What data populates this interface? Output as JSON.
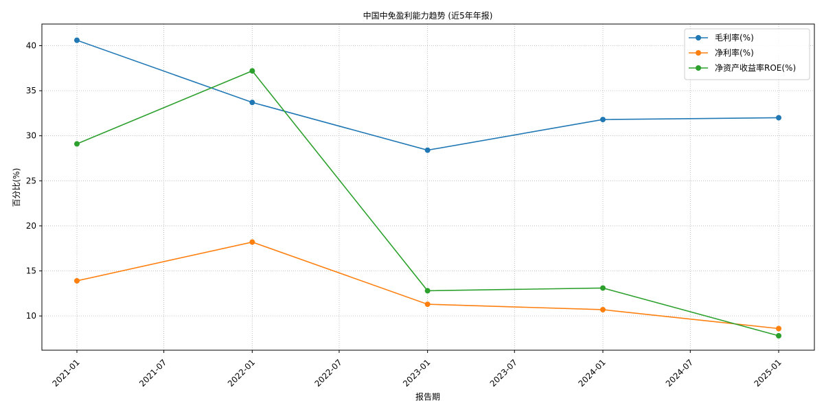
{
  "chart_data": {
    "type": "line",
    "title": "中国中免盈利能力趋势 (近5年年报)",
    "xlabel": "报告期",
    "ylabel": "百分比(%)",
    "x": [
      "2021-01",
      "2022-01",
      "2023-01",
      "2024-01",
      "2025-01"
    ],
    "x_tick_labels": [
      "2021-01",
      "2021-07",
      "2022-01",
      "2022-07",
      "2023-01",
      "2023-07",
      "2024-01",
      "2024-07",
      "2025-01"
    ],
    "y_ticks": [
      10,
      15,
      20,
      25,
      30,
      35,
      40
    ],
    "ylim": [
      6.2,
      42.4
    ],
    "grid": true,
    "legend_position": "top-right",
    "series": [
      {
        "name": "毛利率(%)",
        "color": "#1f77b4",
        "values": [
          40.6,
          33.7,
          28.4,
          31.8,
          32.0
        ]
      },
      {
        "name": "净利率(%)",
        "color": "#ff7f0e",
        "values": [
          13.9,
          18.2,
          11.3,
          10.7,
          8.6
        ]
      },
      {
        "name": "净资产收益率ROE(%)",
        "color": "#2ca02c",
        "values": [
          29.1,
          37.2,
          12.8,
          13.1,
          7.8
        ]
      }
    ]
  }
}
